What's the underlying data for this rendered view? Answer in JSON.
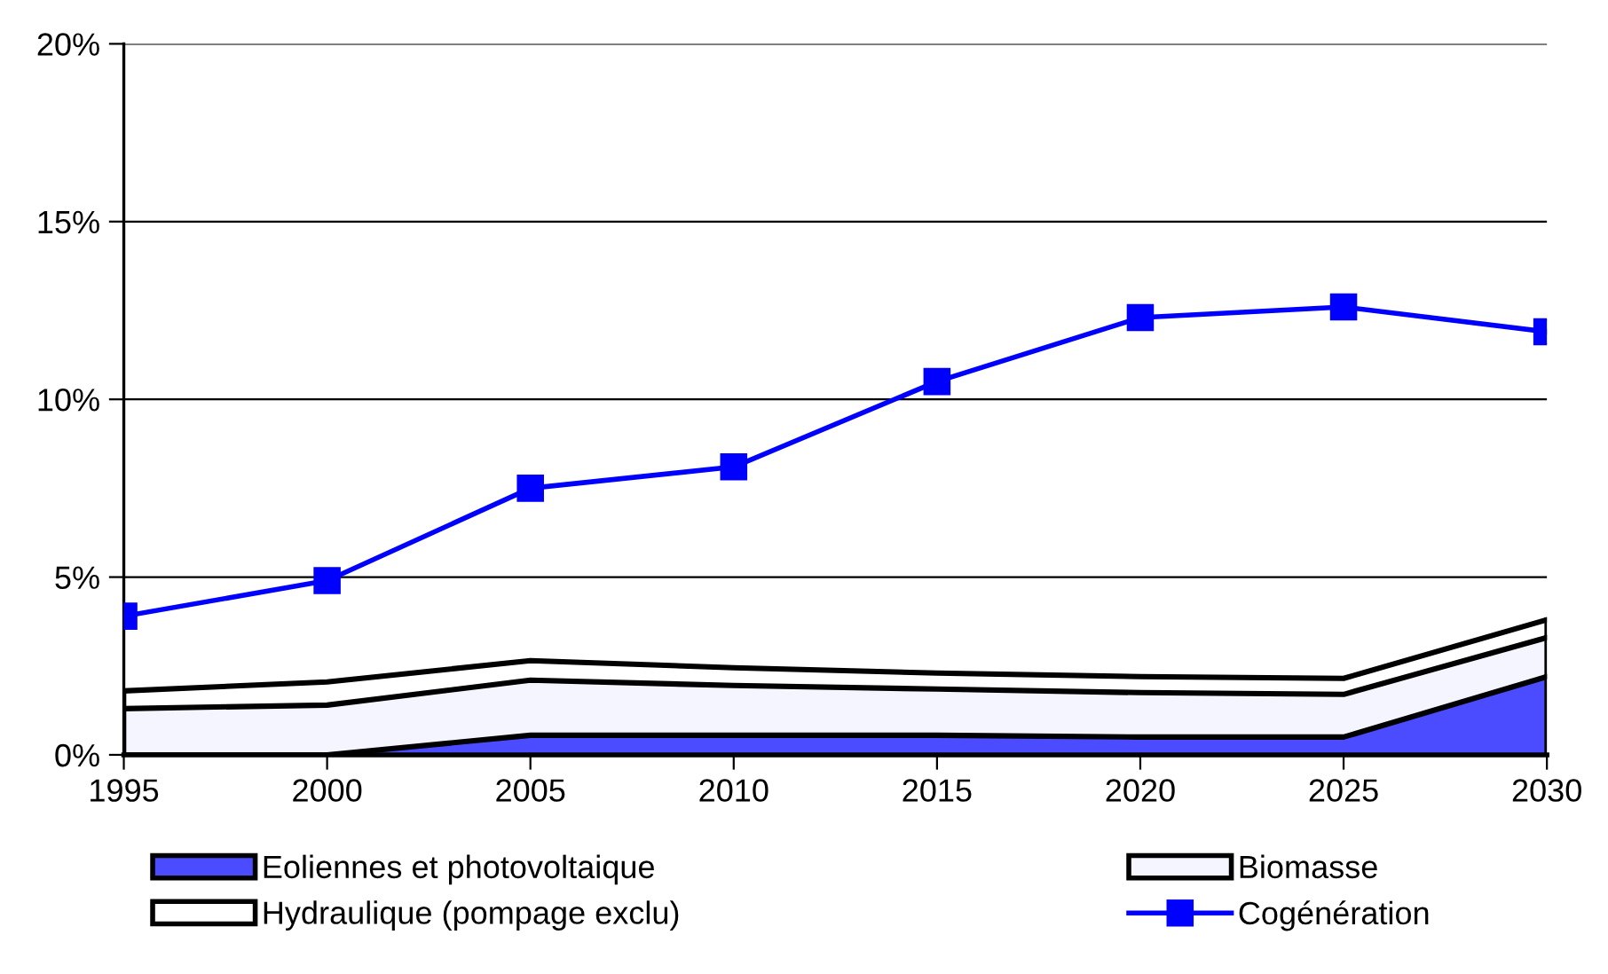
{
  "chart_data": {
    "type": "area",
    "stacked": true,
    "x": [
      1995,
      2000,
      2005,
      2010,
      2015,
      2020,
      2025,
      2030
    ],
    "series": [
      {
        "name": "Eoliennes et photovoltaique",
        "color": "#4b4bff",
        "values": [
          0,
          0,
          0.55,
          0.55,
          0.55,
          0.5,
          0.5,
          2.2
        ]
      },
      {
        "name": "Biomasse",
        "color": "#f5f5ff",
        "values": [
          1.3,
          1.4,
          1.55,
          1.4,
          1.3,
          1.25,
          1.2,
          1.1
        ]
      },
      {
        "name": "Hydraulique (pompage exclu)",
        "color": "#ffffff",
        "values": [
          0.5,
          0.65,
          0.55,
          0.5,
          0.45,
          0.45,
          0.45,
          0.5
        ]
      },
      {
        "name": "Cogénération",
        "type": "line",
        "color": "#0000ff",
        "marker": "square",
        "values": [
          3.9,
          4.9,
          7.5,
          8.1,
          10.5,
          12.3,
          12.6,
          11.9
        ]
      }
    ],
    "xlim": [
      1995,
      2030
    ],
    "xticks": [
      1995,
      2000,
      2005,
      2010,
      2015,
      2020,
      2025,
      2030
    ],
    "ylim": [
      0,
      20
    ],
    "yticks": [
      {
        "value": 0,
        "label": "0%"
      },
      {
        "value": 5,
        "label": "5%"
      },
      {
        "value": 10,
        "label": "10%"
      },
      {
        "value": 15,
        "label": "15%"
      },
      {
        "value": 20,
        "label": "20%"
      }
    ],
    "grid": "y",
    "legend": "bottom"
  }
}
